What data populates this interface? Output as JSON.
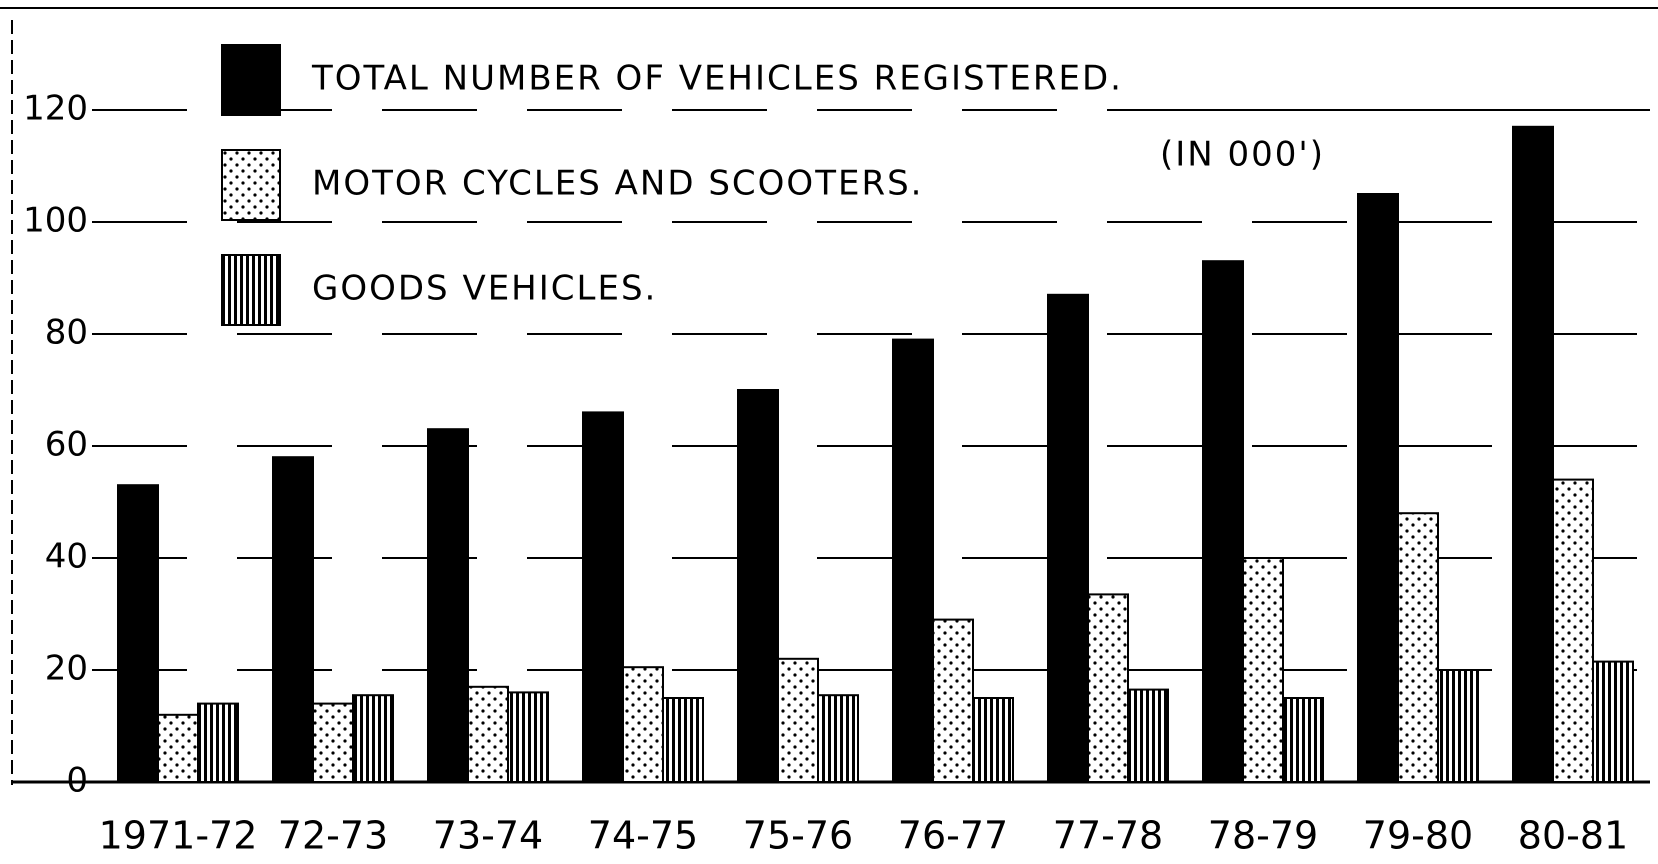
{
  "chart_data": {
    "type": "bar",
    "annotation": "(IN 000')",
    "categories": [
      "1971-72",
      "72-73",
      "73-74",
      "74-75",
      "75-76",
      "76-77",
      "77-78",
      "78-79",
      "79-80",
      "80-81"
    ],
    "series": [
      {
        "name": "TOTAL NUMBER OF VEHICLES REGISTERED.",
        "color": "#000000",
        "pattern": "solid",
        "values": [
          53,
          58,
          63,
          66,
          70,
          79,
          87,
          93,
          105,
          117
        ]
      },
      {
        "name": "MOTOR CYCLES AND SCOOTERS.",
        "color": "#000000",
        "pattern": "dots",
        "values": [
          12,
          14,
          17,
          20.5,
          22,
          29,
          33.5,
          40,
          48,
          54
        ]
      },
      {
        "name": "GOODS VEHICLES.",
        "color": "#000000",
        "pattern": "vertical-lines",
        "values": [
          14,
          15.5,
          16,
          15,
          15.5,
          15,
          16.5,
          15,
          20,
          21.5
        ]
      }
    ],
    "ylim": [
      0,
      120
    ],
    "yticks": [
      0,
      20,
      40,
      60,
      80,
      100,
      120
    ],
    "grid": true
  }
}
